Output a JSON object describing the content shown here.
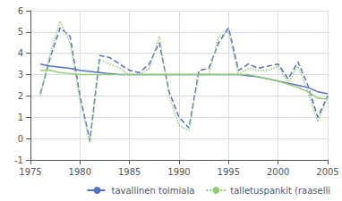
{
  "chart_data": {
    "type": "line",
    "x": [
      1976,
      1977,
      1978,
      1979,
      1980,
      1981,
      1982,
      1983,
      1984,
      1985,
      1986,
      1987,
      1988,
      1989,
      1990,
      1991,
      1992,
      1993,
      1994,
      1995,
      1996,
      1997,
      1998,
      1999,
      2000,
      2001,
      2002,
      2003,
      2004,
      2005
    ],
    "series": [
      {
        "name": "tavallinen toimiala",
        "color": "#5470c6",
        "line_style": "dashed",
        "values": [
          2.1,
          3.8,
          5.2,
          4.8,
          2.0,
          -0.1,
          3.9,
          3.8,
          3.5,
          3.2,
          3.1,
          3.5,
          4.5,
          2.2,
          1.0,
          0.5,
          3.2,
          3.3,
          4.5,
          5.2,
          3.2,
          3.5,
          3.3,
          3.4,
          3.5,
          2.8,
          3.6,
          2.5,
          1.0,
          2.0
        ]
      },
      {
        "name": "talletuspankit (raaselli",
        "color": "#91cc75",
        "line_style": "dotted",
        "values": [
          2.0,
          4.0,
          5.5,
          4.5,
          1.8,
          -0.2,
          3.7,
          3.5,
          3.3,
          3.0,
          3.0,
          3.3,
          4.8,
          2.0,
          0.6,
          0.4,
          3.0,
          3.0,
          4.8,
          5.0,
          3.0,
          3.3,
          3.2,
          3.2,
          3.4,
          2.6,
          3.4,
          2.2,
          0.8,
          1.9
        ]
      },
      {
        "color": "#5470c6",
        "line_style": "solid",
        "values": [
          3.5,
          3.4,
          3.35,
          3.3,
          3.2,
          3.15,
          3.1,
          3.05,
          3.0,
          3.0,
          3.0,
          3.0,
          3.0,
          3.0,
          3.0,
          3.0,
          3.0,
          3.0,
          3.0,
          3.0,
          3.0,
          2.95,
          2.9,
          2.8,
          2.7,
          2.6,
          2.5,
          2.4,
          2.2,
          2.1
        ]
      },
      {
        "color": "#91cc75",
        "line_style": "solid",
        "values": [
          3.2,
          3.2,
          3.1,
          3.05,
          3.0,
          3.0,
          3.0,
          3.0,
          3.0,
          3.0,
          3.0,
          3.0,
          3.0,
          3.0,
          3.0,
          3.0,
          3.0,
          3.0,
          3.0,
          3.0,
          3.0,
          3.0,
          2.9,
          2.8,
          2.7,
          2.55,
          2.4,
          2.2,
          1.9,
          1.85
        ]
      }
    ],
    "xlim": [
      1975,
      2005
    ],
    "xticks": [
      1975,
      1980,
      1985,
      1990,
      1995,
      2000,
      2005
    ],
    "ylim": [
      -1,
      6
    ],
    "yticks": [
      -1,
      0,
      1,
      2,
      3,
      4,
      5,
      6
    ],
    "grid": true,
    "legend": "lower right"
  }
}
